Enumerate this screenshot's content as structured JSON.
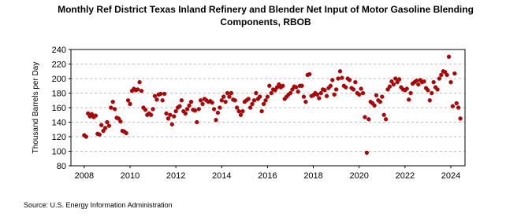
{
  "chart_data": {
    "type": "scatter",
    "title": [
      "Monthly Ref District Texas Inland Refinery and Blender Net Input of Motor Gasoline Blending",
      "Components, RBOB"
    ],
    "y_label": "Thousand Barrels per Day",
    "source": "Source: U.S. Energy Information Administration",
    "xlim": [
      2007.42,
      2024.62
    ],
    "xticks": [
      2008,
      2010,
      2012,
      2014,
      2016,
      2018,
      2020,
      2022,
      2024
    ],
    "ylim": [
      80,
      240
    ],
    "yticks": [
      80,
      100,
      120,
      140,
      160,
      180,
      200,
      220,
      240
    ],
    "grid": true,
    "color": "#c00000",
    "x": [
      2008.0,
      2008.083,
      2008.167,
      2008.25,
      2008.333,
      2008.417,
      2008.5,
      2008.583,
      2008.667,
      2008.75,
      2008.833,
      2008.917,
      2009.0,
      2009.083,
      2009.167,
      2009.25,
      2009.333,
      2009.417,
      2009.5,
      2009.583,
      2009.667,
      2009.75,
      2009.833,
      2009.917,
      2010.0,
      2010.083,
      2010.167,
      2010.25,
      2010.333,
      2010.417,
      2010.5,
      2010.583,
      2010.667,
      2010.75,
      2010.833,
      2010.917,
      2011.0,
      2011.083,
      2011.167,
      2011.25,
      2011.333,
      2011.417,
      2011.5,
      2011.583,
      2011.667,
      2011.75,
      2011.833,
      2011.917,
      2012.0,
      2012.083,
      2012.167,
      2012.25,
      2012.333,
      2012.417,
      2012.5,
      2012.583,
      2012.667,
      2012.75,
      2012.833,
      2012.917,
      2013.0,
      2013.083,
      2013.167,
      2013.25,
      2013.333,
      2013.417,
      2013.5,
      2013.583,
      2013.667,
      2013.75,
      2013.833,
      2013.917,
      2014.0,
      2014.083,
      2014.167,
      2014.25,
      2014.333,
      2014.417,
      2014.5,
      2014.583,
      2014.667,
      2014.75,
      2014.833,
      2014.917,
      2015.0,
      2015.083,
      2015.167,
      2015.25,
      2015.333,
      2015.417,
      2015.5,
      2015.583,
      2015.667,
      2015.75,
      2015.833,
      2015.917,
      2016.0,
      2016.083,
      2016.167,
      2016.25,
      2016.333,
      2016.417,
      2016.5,
      2016.583,
      2016.667,
      2016.75,
      2016.833,
      2016.917,
      2017.0,
      2017.083,
      2017.167,
      2017.25,
      2017.333,
      2017.417,
      2017.5,
      2017.583,
      2017.667,
      2017.75,
      2017.833,
      2017.917,
      2018.0,
      2018.083,
      2018.167,
      2018.25,
      2018.333,
      2018.417,
      2018.5,
      2018.583,
      2018.667,
      2018.75,
      2018.833,
      2018.917,
      2019.0,
      2019.083,
      2019.167,
      2019.25,
      2019.333,
      2019.417,
      2019.5,
      2019.583,
      2019.667,
      2019.75,
      2019.833,
      2019.917,
      2020.0,
      2020.083,
      2020.167,
      2020.25,
      2020.333,
      2020.417,
      2020.5,
      2020.583,
      2020.667,
      2020.75,
      2020.833,
      2020.917,
      2021.0,
      2021.083,
      2021.167,
      2021.25,
      2021.333,
      2021.417,
      2021.5,
      2021.583,
      2021.667,
      2021.75,
      2021.833,
      2021.917,
      2022.0,
      2022.083,
      2022.167,
      2022.25,
      2022.333,
      2022.417,
      2022.5,
      2022.583,
      2022.667,
      2022.75,
      2022.833,
      2022.917,
      2023.0,
      2023.083,
      2023.167,
      2023.25,
      2023.333,
      2023.417,
      2023.5,
      2023.583,
      2023.667,
      2023.75,
      2023.833,
      2023.917,
      2024.0,
      2024.083,
      2024.167,
      2024.25,
      2024.333,
      2024.417
    ],
    "values": [
      122,
      120,
      152,
      148,
      151,
      147,
      149,
      124,
      123,
      136,
      128,
      132,
      140,
      135,
      160,
      168,
      158,
      146,
      145,
      141,
      128,
      127,
      125,
      170,
      165,
      183,
      186,
      184,
      185,
      195,
      183,
      160,
      157,
      150,
      152,
      150,
      158,
      176,
      171,
      178,
      179,
      170,
      179,
      152,
      145,
      150,
      137,
      148,
      155,
      160,
      162,
      170,
      155,
      152,
      158,
      163,
      168,
      157,
      156,
      140,
      158,
      170,
      165,
      172,
      170,
      168,
      169,
      167,
      158,
      143,
      153,
      160,
      170,
      175,
      168,
      180,
      175,
      180,
      171,
      170,
      160,
      155,
      150,
      155,
      168,
      170,
      172,
      160,
      165,
      170,
      180,
      172,
      175,
      155,
      165,
      170,
      175,
      190,
      180,
      185,
      184,
      188,
      192,
      188,
      190,
      172,
      175,
      178,
      180,
      185,
      189,
      188,
      182,
      190,
      190,
      175,
      168,
      205,
      206,
      176,
      177,
      180,
      178,
      173,
      180,
      185,
      184,
      176,
      187,
      190,
      198,
      178,
      185,
      200,
      210,
      201,
      190,
      188,
      200,
      198,
      187,
      185,
      195,
      180,
      178,
      186,
      180,
      147,
      98,
      144,
      168,
      166,
      163,
      177,
      170,
      168,
      175,
      150,
      144,
      185,
      189,
      196,
      192,
      200,
      195,
      199,
      188,
      185,
      184,
      186,
      171,
      180,
      193,
      195,
      197,
      192,
      198,
      195,
      196,
      187,
      184,
      170,
      180,
      195,
      188,
      185,
      200,
      205,
      210,
      209,
      205,
      230,
      195,
      162,
      207,
      166,
      160,
      145
    ]
  }
}
